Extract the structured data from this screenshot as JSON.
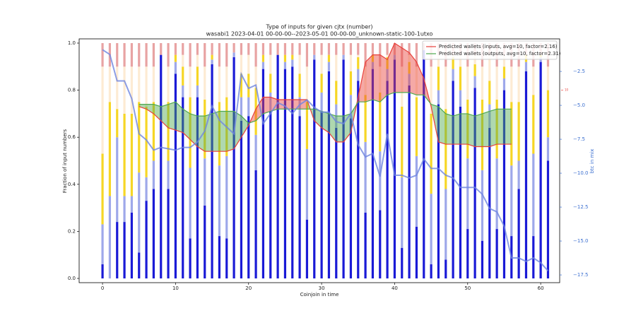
{
  "chart_data": {
    "type": "bar",
    "title": "Type of inputs for given cjtx (number)",
    "subtitle": "wasabi1 2023-04-01 00-00-00--2023-05-01 00-00-00_unknown-static-100-1utxo",
    "x_label": "Coinjoin in time",
    "y_label": "Fraction of input numbers",
    "y2_label": "btc in mix",
    "x": [
      0,
      1,
      2,
      3,
      4,
      5,
      6,
      7,
      8,
      9,
      10,
      11,
      12,
      13,
      14,
      15,
      16,
      17,
      18,
      19,
      20,
      21,
      22,
      23,
      24,
      25,
      26,
      27,
      28,
      29,
      30,
      31,
      32,
      33,
      34,
      35,
      36,
      37,
      38,
      39,
      40,
      41,
      42,
      43,
      44,
      45,
      46,
      47,
      48,
      49,
      50,
      51,
      52,
      53,
      54,
      55,
      56,
      57,
      58,
      59,
      60,
      61
    ],
    "xlim": [
      -3.2,
      62.6
    ],
    "xticks": [
      0,
      10,
      20,
      30,
      40,
      50,
      60
    ],
    "ylim": [
      -0.018,
      1.018
    ],
    "yticks": [
      {
        "value": 0,
        "label": "0.0"
      },
      {
        "value": 0.2,
        "label": "0.2"
      },
      {
        "value": 0.4,
        "label": "0.4"
      },
      {
        "value": 0.6,
        "label": "0.6"
      },
      {
        "value": 0.8,
        "label": "0.8"
      },
      {
        "value": 1,
        "label": "1.0"
      }
    ],
    "y2lim": [
      -18.07,
      -0.1
    ],
    "y2ticks": [
      {
        "value": -2.5,
        "label": "−2.5"
      },
      {
        "value": -5,
        "label": "−5.0"
      },
      {
        "value": -7.5,
        "label": "−7.5"
      },
      {
        "value": -10,
        "label": "−10.0"
      },
      {
        "value": -12.5,
        "label": "−12.5"
      },
      {
        "value": -15,
        "label": "−15.0"
      },
      {
        "value": -17.5,
        "label": "−17.5"
      }
    ],
    "y3lim": [
      -0.23,
      12.73
    ],
    "y3ticks": [
      10
    ],
    "legend": "upper right",
    "series": [
      {
        "kind": "bar",
        "color": "#1a1ad6",
        "values": [
          0.06,
          0,
          0.24,
          0.24,
          0.28,
          0.11,
          0.33,
          0.38,
          0.95,
          0.38,
          0.87,
          0.77,
          0.17,
          0.77,
          0.31,
          0.91,
          0.18,
          0.17,
          0.94,
          0.67,
          0.69,
          0.46,
          0.89,
          0.71,
          0.95,
          0.89,
          0.9,
          0.69,
          0.25,
          0.93,
          0.71,
          0.88,
          0.64,
          0.93,
          0.68,
          0.84,
          0.28,
          0.89,
          0.29,
          0.84,
          0.93,
          0.13,
          0.82,
          0.22,
          0.97,
          0.06,
          0.74,
          0.08,
          0.84,
          0.73,
          0.21,
          0.81,
          0.16,
          0.64,
          0.21,
          0.8,
          0.18,
          0.38,
          0.88,
          0.18,
          0.92,
          0.5
        ]
      },
      {
        "kind": "bar",
        "color": "#9ea8ea",
        "values": [
          0.17,
          0.35,
          0.36,
          0.11,
          0.07,
          0.34,
          0.1,
          0.12,
          0,
          0.12,
          0.05,
          0.05,
          0.3,
          0.05,
          0.2,
          0.02,
          0.3,
          0.35,
          0.02,
          0.1,
          0.08,
          0.15,
          0.03,
          0.08,
          0,
          0.03,
          0.03,
          0.08,
          0.3,
          0.02,
          0.08,
          0.04,
          0.1,
          0.02,
          0.1,
          0.05,
          0.3,
          0.03,
          0.25,
          0.05,
          0.02,
          0.3,
          0.05,
          0.3,
          0,
          0.3,
          0.06,
          0.3,
          0.05,
          0.07,
          0.3,
          0.05,
          0.3,
          0.1,
          0.3,
          0.05,
          0.3,
          0.12,
          0.04,
          0.35,
          0.02,
          0.1
        ]
      },
      {
        "kind": "bar",
        "color": "#f6d626",
        "values": [
          0.3,
          0.4,
          0.12,
          0.35,
          0.35,
          0.3,
          0.3,
          0.25,
          0,
          0.25,
          0.03,
          0.08,
          0.3,
          0.08,
          0.25,
          0.02,
          0.27,
          0.25,
          0,
          0.1,
          0.1,
          0.2,
          0.03,
          0.08,
          0,
          0.03,
          0.02,
          0.1,
          0.2,
          0,
          0.08,
          0.03,
          0.1,
          0,
          0.1,
          0.05,
          0.2,
          0.03,
          0.25,
          0.05,
          0,
          0.3,
          0.05,
          0.25,
          0,
          0.34,
          0.1,
          0.34,
          0.05,
          0.1,
          0.25,
          0.05,
          0.3,
          0.1,
          0.25,
          0.05,
          0.27,
          0.25,
          0.03,
          0.25,
          0.01,
          0.2
        ]
      },
      {
        "kind": "bar",
        "color": "#fdebd3",
        "values": [
          0.37,
          0.15,
          0.18,
          0.2,
          0.2,
          0.15,
          0.17,
          0.15,
          0,
          0.15,
          0,
          0.05,
          0.13,
          0.05,
          0.14,
          0,
          0.15,
          0.13,
          0,
          0.08,
          0.08,
          0.09,
          0,
          0.08,
          0,
          0,
          0,
          0.08,
          0.15,
          0,
          0.08,
          0,
          0.11,
          0,
          0.07,
          0.01,
          0.12,
          0,
          0.11,
          0.01,
          0,
          0.17,
          0.03,
          0.13,
          0,
          0.2,
          0.05,
          0.18,
          0.01,
          0.05,
          0.14,
          0.04,
          0.14,
          0.11,
          0.14,
          0.05,
          0.15,
          0.15,
          0,
          0.12,
          0,
          0.1
        ]
      },
      {
        "kind": "bar",
        "color": "#e8a3a3",
        "values": [
          0.1,
          0.1,
          0.1,
          0.1,
          0.1,
          0.1,
          0.1,
          0.1,
          0.05,
          0.1,
          0.05,
          0.05,
          0.1,
          0.05,
          0.1,
          0.05,
          0.1,
          0.1,
          0.04,
          0.05,
          0.05,
          0.1,
          0.05,
          0.05,
          0.05,
          0.05,
          0.05,
          0.05,
          0.1,
          0.05,
          0.05,
          0.05,
          0.05,
          0.05,
          0.05,
          0.05,
          0.1,
          0.05,
          0.1,
          0.05,
          0.05,
          0.1,
          0.05,
          0.1,
          0.03,
          0.1,
          0.05,
          0.1,
          0.05,
          0.05,
          0.1,
          0.05,
          0.1,
          0.05,
          0.1,
          0.05,
          0.1,
          0.1,
          0.05,
          0.1,
          0.05,
          0.1
        ]
      },
      {
        "kind": "line",
        "axis": "y3",
        "name": "Predicted wallets (inputs, avg=10, factor=2.16)",
        "color": "#e8403a",
        "values": [
          null,
          null,
          null,
          null,
          null,
          9.13,
          9.0,
          8.75,
          8.38,
          8.0,
          7.88,
          7.75,
          7.38,
          7.0,
          6.75,
          6.75,
          6.75,
          6.75,
          6.88,
          7.5,
          8.13,
          9.0,
          9.63,
          9.63,
          9.5,
          9.5,
          9.5,
          9.5,
          9.5,
          8.38,
          8.0,
          7.75,
          7.25,
          7.25,
          7.75,
          9.63,
          11.5,
          11.88,
          11.88,
          11.63,
          12.5,
          12.25,
          12.0,
          11.5,
          10.63,
          9.13,
          7.25,
          7.13,
          7.13,
          7.13,
          7.13,
          7.0,
          7.0,
          7.0,
          7.13,
          7.13,
          7.13,
          null,
          null,
          null,
          null,
          null
        ]
      },
      {
        "kind": "line",
        "axis": "y3",
        "name": "Predicted wallets (outputs, avg=10, factor=2.31)",
        "color": "#4ea84e",
        "values": [
          null,
          null,
          null,
          null,
          null,
          9.25,
          9.25,
          9.25,
          9.13,
          9.25,
          9.38,
          9.0,
          8.75,
          8.63,
          8.63,
          8.75,
          8.88,
          8.88,
          8.88,
          8.63,
          8.25,
          8.38,
          8.75,
          8.88,
          9.0,
          9.0,
          9.0,
          9.0,
          9.0,
          9.0,
          8.88,
          8.75,
          8.63,
          8.63,
          8.75,
          9.38,
          9.38,
          9.5,
          9.38,
          9.75,
          9.88,
          9.88,
          9.88,
          9.75,
          9.75,
          9.25,
          9.13,
          8.75,
          8.63,
          8.75,
          8.75,
          8.63,
          8.75,
          8.88,
          9.0,
          9.0,
          9.0,
          null,
          null,
          null,
          null,
          null
        ]
      },
      {
        "kind": "line",
        "axis": "y2",
        "color": "#6f86e0",
        "values": [
          -0.9,
          -1.25,
          -3.2,
          -3.2,
          -4.5,
          -7.1,
          -7.55,
          -8.3,
          -8.1,
          -8.2,
          -8.3,
          -8.1,
          -8.1,
          -7.7,
          -6.9,
          -5.05,
          -6.1,
          -6.6,
          -7.1,
          -2.7,
          -3.75,
          -3.5,
          -6.35,
          -5.6,
          -4.8,
          -5.05,
          -5.6,
          -4.95,
          -4.6,
          -5.15,
          -5.5,
          -5.5,
          -6.2,
          -6.35,
          -5.6,
          -7.9,
          -8.8,
          -8.55,
          -10.25,
          -7.1,
          -10.15,
          -10.15,
          -10.35,
          -10.15,
          -8.95,
          -9.65,
          -9.65,
          -10.15,
          -10.35,
          -11.05,
          -11.05,
          -11.05,
          -11.55,
          -12.6,
          -12.85,
          -13.9,
          -16.25,
          -16.25,
          -16.5,
          -16.25,
          -16.6,
          -17.2
        ]
      }
    ]
  }
}
